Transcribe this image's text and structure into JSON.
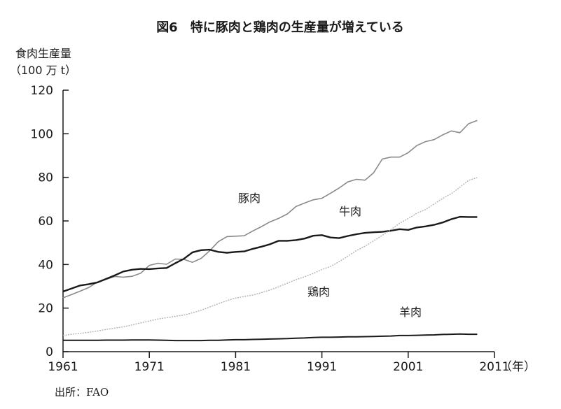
{
  "chart_data": {
    "type": "line",
    "title": "図6　特に豚肉と鶏肉の生産量が増えている",
    "ylabel_line1": "食肉生産量",
    "ylabel_line2": "（100 万 t）",
    "xlabel": "（年）",
    "source": "出所：FAO",
    "xlim": [
      1961,
      2011
    ],
    "ylim": [
      0,
      120
    ],
    "xticks": [
      1961,
      1971,
      1981,
      1991,
      2001,
      2011
    ],
    "yticks": [
      0,
      20,
      40,
      60,
      80,
      100,
      120
    ],
    "x": [
      1961,
      1962,
      1963,
      1964,
      1965,
      1966,
      1967,
      1968,
      1969,
      1970,
      1971,
      1972,
      1973,
      1974,
      1975,
      1976,
      1977,
      1978,
      1979,
      1980,
      1981,
      1982,
      1983,
      1984,
      1985,
      1986,
      1987,
      1988,
      1989,
      1990,
      1991,
      1992,
      1993,
      1994,
      1995,
      1996,
      1997,
      1998,
      1999,
      2000,
      2001,
      2002,
      2003,
      2004,
      2005,
      2006,
      2007,
      2008,
      2009
    ],
    "series": [
      {
        "name": "豚肉",
        "color": "#8a8a8a",
        "width": 1.6,
        "values": [
          24.7,
          26.2,
          27.8,
          29.5,
          32.0,
          33.2,
          34.5,
          34.2,
          34.6,
          36.0,
          39.6,
          40.6,
          40.1,
          42.5,
          42.4,
          41.0,
          42.8,
          46.3,
          50.5,
          52.8,
          53.0,
          53.2,
          55.4,
          57.4,
          59.6,
          61.2,
          63.2,
          66.6,
          68.2,
          69.7,
          70.4,
          72.7,
          75.1,
          77.9,
          79.1,
          78.7,
          82.1,
          88.4,
          89.3,
          89.3,
          91.3,
          94.6,
          96.4,
          97.3,
          99.5,
          101.3,
          100.5,
          104.6,
          106.1
        ]
      },
      {
        "name": "牛肉",
        "color": "#1a1a1a",
        "width": 2.4,
        "values": [
          27.6,
          29.0,
          30.4,
          31.0,
          31.8,
          33.4,
          35.0,
          36.8,
          37.6,
          38.0,
          37.9,
          38.2,
          38.4,
          40.6,
          42.6,
          45.6,
          46.6,
          46.8,
          45.8,
          45.4,
          45.8,
          46.0,
          47.2,
          48.2,
          49.3,
          50.9,
          50.9,
          51.2,
          51.9,
          53.2,
          53.5,
          52.4,
          52.1,
          53.1,
          53.9,
          54.5,
          54.8,
          55.0,
          55.5,
          56.2,
          55.9,
          57.0,
          57.5,
          58.2,
          59.3,
          60.8,
          61.9,
          61.8,
          61.8
        ]
      },
      {
        "name": "鶏肉",
        "color": "#b4b4b4",
        "width": 1.4,
        "dashed": true,
        "values": [
          7.4,
          8.0,
          8.4,
          8.9,
          9.5,
          10.2,
          10.8,
          11.4,
          12.3,
          13.2,
          14.1,
          15.0,
          15.6,
          16.2,
          16.8,
          17.8,
          19.0,
          20.5,
          22.0,
          23.4,
          24.6,
          25.3,
          26.0,
          27.1,
          28.3,
          29.8,
          31.4,
          33.0,
          34.4,
          35.9,
          37.7,
          39.1,
          41.3,
          43.8,
          46.4,
          48.4,
          50.9,
          53.4,
          56.0,
          58.9,
          61.1,
          63.5,
          65.2,
          67.8,
          70.3,
          72.5,
          75.5,
          78.6,
          79.9
        ]
      },
      {
        "name": "羊肉",
        "color": "#1a1a1a",
        "width": 2.0,
        "values": [
          5.2,
          5.2,
          5.2,
          5.2,
          5.2,
          5.3,
          5.3,
          5.3,
          5.4,
          5.4,
          5.4,
          5.3,
          5.2,
          5.1,
          5.1,
          5.1,
          5.1,
          5.2,
          5.2,
          5.4,
          5.5,
          5.5,
          5.6,
          5.7,
          5.8,
          5.9,
          6.0,
          6.2,
          6.3,
          6.5,
          6.6,
          6.6,
          6.7,
          6.8,
          6.8,
          6.9,
          7.0,
          7.1,
          7.2,
          7.4,
          7.4,
          7.5,
          7.6,
          7.7,
          7.9,
          8.0,
          8.1,
          8.0,
          8.0
        ]
      }
    ]
  }
}
